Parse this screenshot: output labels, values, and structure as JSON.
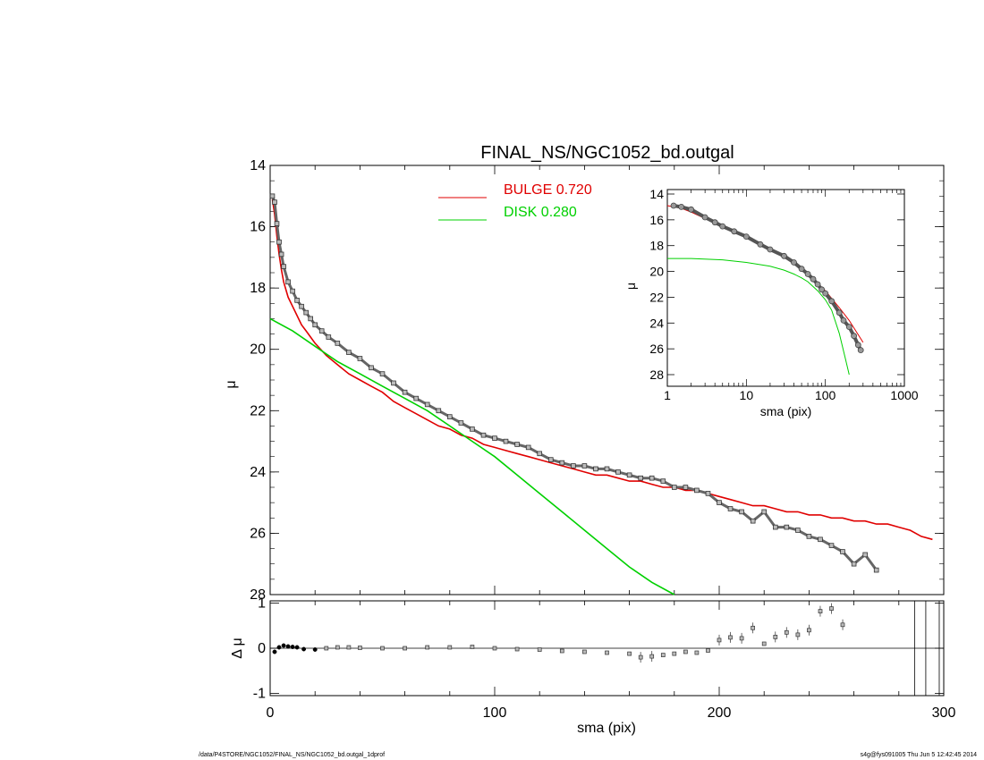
{
  "footer": {
    "path": "/data/P4STORE/NGC1052/FINAL_NS/NGC1052_bd.outgal_1dprof",
    "stamp": "s4g@fys091005  Thu Jun  5 12:42:45 2014"
  },
  "chart_data": [
    {
      "id": "main",
      "type": "line",
      "title": "FINAL_NS/NGC1052_bd.outgal",
      "xlabel": "",
      "ylabel": "μ",
      "xlim": [
        0,
        300
      ],
      "ylim": [
        28,
        14
      ],
      "y_inverted": true,
      "xticks": [
        0,
        100,
        200,
        300
      ],
      "yticks": [
        14,
        16,
        18,
        20,
        22,
        24,
        26,
        28
      ],
      "legend": [
        {
          "name": "BULGE",
          "value": "0.720",
          "color": "#e00000"
        },
        {
          "name": "DISK",
          "value": "0.280",
          "color": "#00d000"
        }
      ],
      "legend_position": "top-center",
      "series": [
        {
          "name": "data",
          "kind": "markers",
          "x": [
            1,
            2,
            3,
            4,
            5,
            6,
            8,
            10,
            12,
            14,
            16,
            18,
            20,
            23,
            26,
            30,
            35,
            40,
            45,
            50,
            55,
            60,
            65,
            70,
            75,
            80,
            85,
            90,
            95,
            100,
            105,
            110,
            115,
            120,
            125,
            130,
            135,
            140,
            145,
            150,
            155,
            160,
            165,
            170,
            175,
            180,
            185,
            190,
            195,
            200,
            205,
            210,
            215,
            220,
            225,
            230,
            235,
            240,
            245,
            250,
            255,
            260,
            265,
            270
          ],
          "y": [
            15.0,
            15.2,
            15.9,
            16.5,
            16.9,
            17.3,
            17.8,
            18.1,
            18.4,
            18.6,
            18.8,
            19.0,
            19.2,
            19.4,
            19.6,
            19.8,
            20.1,
            20.3,
            20.6,
            20.8,
            21.1,
            21.4,
            21.6,
            21.8,
            22.0,
            22.2,
            22.4,
            22.6,
            22.8,
            22.9,
            23.0,
            23.1,
            23.2,
            23.4,
            23.6,
            23.7,
            23.8,
            23.8,
            23.9,
            23.9,
            24.0,
            24.1,
            24.2,
            24.2,
            24.3,
            24.5,
            24.5,
            24.6,
            24.7,
            25.0,
            25.2,
            25.3,
            25.6,
            25.3,
            25.8,
            25.8,
            25.9,
            26.1,
            26.2,
            26.4,
            26.6,
            27.0,
            26.7,
            27.2
          ]
        },
        {
          "name": "BULGE",
          "color": "#e00000",
          "x": [
            1,
            2,
            3,
            4,
            5,
            6,
            8,
            10,
            12,
            14,
            16,
            18,
            20,
            25,
            30,
            35,
            40,
            45,
            50,
            55,
            60,
            65,
            70,
            75,
            80,
            85,
            90,
            95,
            100,
            105,
            110,
            115,
            120,
            125,
            130,
            135,
            140,
            145,
            150,
            155,
            160,
            165,
            170,
            175,
            180,
            185,
            190,
            195,
            200,
            205,
            210,
            215,
            220,
            225,
            230,
            235,
            240,
            245,
            250,
            255,
            260,
            265,
            270,
            275,
            280,
            285,
            290,
            295
          ],
          "y": [
            15.1,
            15.6,
            16.3,
            16.9,
            17.4,
            17.8,
            18.3,
            18.6,
            18.9,
            19.2,
            19.4,
            19.6,
            19.8,
            20.2,
            20.5,
            20.8,
            21.0,
            21.2,
            21.4,
            21.7,
            21.9,
            22.1,
            22.3,
            22.5,
            22.6,
            22.8,
            22.9,
            23.1,
            23.2,
            23.3,
            23.4,
            23.5,
            23.6,
            23.7,
            23.8,
            23.9,
            24.0,
            24.1,
            24.1,
            24.2,
            24.3,
            24.3,
            24.4,
            24.5,
            24.5,
            24.6,
            24.6,
            24.7,
            24.8,
            24.9,
            25.0,
            25.1,
            25.1,
            25.2,
            25.3,
            25.3,
            25.4,
            25.4,
            25.5,
            25.5,
            25.6,
            25.6,
            25.7,
            25.7,
            25.8,
            25.9,
            26.1,
            26.2
          ]
        },
        {
          "name": "DISK",
          "color": "#00d000",
          "x": [
            0,
            10,
            20,
            30,
            40,
            50,
            60,
            70,
            80,
            90,
            100,
            110,
            120,
            130,
            140,
            150,
            160,
            170,
            180
          ],
          "y": [
            19.0,
            19.4,
            19.9,
            20.4,
            20.8,
            21.2,
            21.6,
            22.0,
            22.5,
            23.0,
            23.5,
            24.1,
            24.7,
            25.3,
            25.9,
            26.5,
            27.1,
            27.6,
            28.0
          ]
        }
      ]
    },
    {
      "id": "inset",
      "type": "line",
      "title": "",
      "xlabel": "sma (pix)",
      "ylabel": "μ",
      "x_scale": "log",
      "xlim": [
        1,
        1000
      ],
      "ylim": [
        28,
        14
      ],
      "y_inverted": true,
      "xticks": [
        1,
        10,
        100,
        1000
      ],
      "yticks": [
        14,
        16,
        18,
        20,
        22,
        24,
        26,
        28
      ],
      "series": [
        {
          "name": "data",
          "kind": "markers",
          "x": [
            1.2,
            1.5,
            2,
            3,
            4,
            5,
            7,
            10,
            15,
            20,
            30,
            40,
            50,
            60,
            70,
            80,
            90,
            100,
            120,
            150,
            170,
            200,
            230,
            260,
            280
          ],
          "y": [
            14.9,
            15.0,
            15.2,
            15.8,
            16.2,
            16.5,
            16.9,
            17.3,
            17.9,
            18.3,
            18.8,
            19.3,
            19.8,
            20.2,
            20.6,
            21.0,
            21.4,
            21.7,
            22.3,
            23.2,
            23.8,
            24.3,
            25.0,
            25.7,
            26.1
          ]
        },
        {
          "name": "BULGE",
          "color": "#e00000",
          "x": [
            1,
            1.5,
            2,
            3,
            5,
            7,
            10,
            15,
            20,
            30,
            50,
            70,
            100,
            150,
            200,
            300
          ],
          "y": [
            14.9,
            15.1,
            15.4,
            15.9,
            16.5,
            16.9,
            17.3,
            17.9,
            18.3,
            18.9,
            19.8,
            20.6,
            21.5,
            22.8,
            23.8,
            25.5
          ]
        },
        {
          "name": "DISK",
          "color": "#00d000",
          "x": [
            1,
            2,
            5,
            10,
            20,
            30,
            40,
            50,
            60,
            80,
            100,
            120,
            150,
            180,
            200
          ],
          "y": [
            19.0,
            19.0,
            19.1,
            19.3,
            19.6,
            19.9,
            20.2,
            20.5,
            20.8,
            21.5,
            22.2,
            23.0,
            24.8,
            26.8,
            28.0
          ]
        }
      ]
    },
    {
      "id": "residuals",
      "type": "scatter",
      "title": "",
      "xlabel": "sma (pix)",
      "ylabel": "Δ μ",
      "xlim": [
        0,
        300
      ],
      "ylim": [
        -1,
        1
      ],
      "xticks": [
        0,
        100,
        200,
        300
      ],
      "yticks": [
        -1,
        0,
        1
      ],
      "vlines": [
        287,
        292,
        298
      ],
      "series": [
        {
          "name": "residuals",
          "x": [
            2,
            4,
            6,
            8,
            10,
            12,
            15,
            20,
            25,
            30,
            35,
            40,
            50,
            60,
            70,
            80,
            90,
            100,
            110,
            120,
            130,
            140,
            150,
            160,
            165,
            170,
            175,
            180,
            185,
            190,
            195,
            200,
            205,
            210,
            215,
            220,
            225,
            230,
            235,
            240,
            245,
            250,
            255
          ],
          "y": [
            -0.08,
            0.02,
            0.06,
            0.04,
            0.03,
            0.02,
            -0.02,
            -0.03,
            0.0,
            0.02,
            0.02,
            0.01,
            0.0,
            0.0,
            0.02,
            0.02,
            0.03,
            0.0,
            -0.02,
            -0.03,
            -0.06,
            -0.08,
            -0.1,
            -0.12,
            -0.2,
            -0.18,
            -0.15,
            -0.12,
            -0.08,
            -0.1,
            -0.05,
            0.18,
            0.24,
            0.22,
            0.45,
            0.1,
            0.25,
            0.35,
            0.3,
            0.4,
            0.82,
            0.88,
            0.52
          ]
        }
      ]
    }
  ]
}
